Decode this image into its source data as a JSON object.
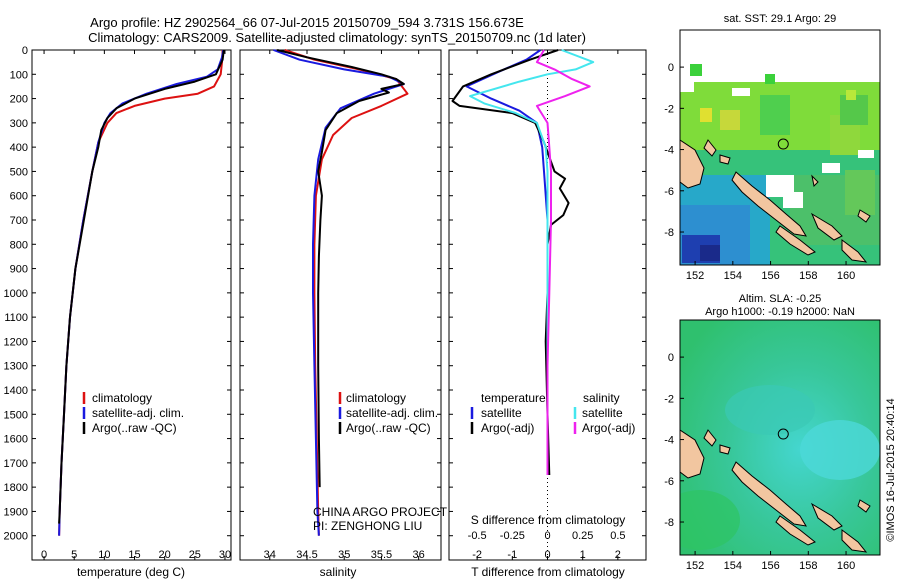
{
  "title_line1": "Argo profile: HZ 2902564_66 07-Jul-2015 20150709_594 3.731S 156.673E",
  "title_line2": "Climatology: CARS2009. Satellite-adjusted climatology: synTS_20150709.nc (1d later)",
  "watermark": "©IMOS 16-Jul-2015 20:40:14",
  "project_line1": "CHINA ARGO PROJECT",
  "project_line2": "PI: ZENGHONG LIU",
  "colors": {
    "climatology": "#dd1111",
    "satellite": "#1a1adf",
    "argo": "#000000",
    "sal_satellite": "#44e6ee",
    "sal_argo": "#ee22ee",
    "land": "#f2c6a0"
  },
  "chart_data": [
    {
      "type": "line",
      "id": "temperature",
      "xlabel": "temperature (deg C)",
      "ylabel": "",
      "xlim": [
        -2,
        31
      ],
      "ylim": [
        2100,
        0
      ],
      "xticks": [
        "0",
        "5",
        "10",
        "15",
        "20",
        "25",
        "30"
      ],
      "yticks": [
        "0",
        "100",
        "200",
        "300",
        "400",
        "500",
        "600",
        "700",
        "800",
        "900",
        "1000",
        "1100",
        "1200",
        "1300",
        "1400",
        "1500",
        "1600",
        "1700",
        "1800",
        "1900",
        "2000"
      ],
      "legend": [
        "climatology",
        "satellite-adj. clim.",
        "Argo(..raw -QC)"
      ],
      "series": [
        {
          "name": "climatology",
          "points": [
            [
              29.6,
              0
            ],
            [
              29.5,
              50
            ],
            [
              29.3,
              100
            ],
            [
              28.2,
              150
            ],
            [
              25.5,
              180
            ],
            [
              20,
              200
            ],
            [
              15,
              230
            ],
            [
              12,
              260
            ],
            [
              10.5,
              300
            ],
            [
              9,
              380
            ],
            [
              8,
              500
            ],
            [
              6.5,
              700
            ],
            [
              5.2,
              900
            ],
            [
              4.3,
              1100
            ],
            [
              3.7,
              1300
            ],
            [
              3.3,
              1500
            ],
            [
              2.9,
              1700
            ],
            [
              2.6,
              1900
            ],
            [
              2.5,
              2000
            ]
          ]
        },
        {
          "name": "satellite-adj. clim.",
          "points": [
            [
              29.7,
              0
            ],
            [
              29.5,
              30
            ],
            [
              28.8,
              80
            ],
            [
              27,
              110
            ],
            [
              22,
              140
            ],
            [
              17,
              180
            ],
            [
              13,
              220
            ],
            [
              11,
              260
            ],
            [
              10,
              300
            ],
            [
              9,
              380
            ],
            [
              8,
              500
            ],
            [
              6.5,
              700
            ],
            [
              5.2,
              900
            ],
            [
              4.3,
              1100
            ],
            [
              3.7,
              1300
            ],
            [
              3.3,
              1500
            ],
            [
              2.9,
              1700
            ],
            [
              2.6,
              1900
            ],
            [
              2.5,
              2000
            ]
          ]
        },
        {
          "name": "Argo(..raw -QC)",
          "points": [
            [
              29.8,
              0
            ],
            [
              29.6,
              40
            ],
            [
              28.5,
              100
            ],
            [
              25,
              130
            ],
            [
              20,
              160
            ],
            [
              15,
              200
            ],
            [
              12,
              240
            ],
            [
              10.5,
              280
            ],
            [
              9.5,
              330
            ],
            [
              9,
              400
            ],
            [
              8,
              500
            ],
            [
              6.6,
              700
            ],
            [
              5.2,
              900
            ],
            [
              4.3,
              1100
            ],
            [
              3.7,
              1300
            ],
            [
              3.3,
              1500
            ],
            [
              2.9,
              1700
            ],
            [
              2.6,
              1900
            ],
            [
              2.5,
              1950
            ]
          ]
        }
      ]
    },
    {
      "type": "line",
      "id": "salinity",
      "xlabel": "salinity",
      "xlim": [
        33.6,
        36.3
      ],
      "ylim": [
        2100,
        0
      ],
      "xticks": [
        "34",
        "34.5",
        "35",
        "35.5",
        "36"
      ],
      "legend": [
        "climatology",
        "satellite-adj. clim.",
        "Argo(..raw -QC)"
      ],
      "series": [
        {
          "name": "climatology",
          "points": [
            [
              34.2,
              0
            ],
            [
              34.6,
              40
            ],
            [
              35.2,
              80
            ],
            [
              35.7,
              120
            ],
            [
              35.85,
              180
            ],
            [
              35.5,
              230
            ],
            [
              35.1,
              280
            ],
            [
              34.85,
              350
            ],
            [
              34.7,
              450
            ],
            [
              34.62,
              600
            ],
            [
              34.6,
              800
            ],
            [
              34.6,
              1000
            ],
            [
              34.61,
              1300
            ],
            [
              34.63,
              1600
            ],
            [
              34.65,
              1900
            ],
            [
              34.66,
              2000
            ]
          ]
        },
        {
          "name": "satellite-adj. clim.",
          "points": [
            [
              34.05,
              0
            ],
            [
              34.4,
              40
            ],
            [
              35.0,
              80
            ],
            [
              35.6,
              110
            ],
            [
              35.8,
              140
            ],
            [
              35.4,
              180
            ],
            [
              34.95,
              240
            ],
            [
              34.75,
              320
            ],
            [
              34.65,
              450
            ],
            [
              34.6,
              600
            ],
            [
              34.58,
              800
            ],
            [
              34.58,
              1000
            ],
            [
              34.6,
              1300
            ],
            [
              34.62,
              1600
            ],
            [
              34.64,
              1900
            ],
            [
              34.66,
              2000
            ]
          ]
        },
        {
          "name": "Argo(..raw -QC)",
          "points": [
            [
              34.1,
              0
            ],
            [
              34.5,
              30
            ],
            [
              35.1,
              70
            ],
            [
              35.5,
              100
            ],
            [
              35.7,
              120
            ],
            [
              35.8,
              140
            ],
            [
              35.5,
              160
            ],
            [
              35.6,
              175
            ],
            [
              35.2,
              210
            ],
            [
              34.9,
              260
            ],
            [
              34.75,
              330
            ],
            [
              34.7,
              420
            ],
            [
              34.65,
              500
            ],
            [
              34.7,
              600
            ],
            [
              34.68,
              700
            ],
            [
              34.66,
              850
            ],
            [
              34.65,
              1000
            ],
            [
              34.65,
              1300
            ],
            [
              34.66,
              1600
            ],
            [
              34.67,
              1800
            ]
          ]
        }
      ]
    },
    {
      "type": "line",
      "id": "difference",
      "xlabel": "T difference from climatology",
      "xlabel_top": "S difference from climatology",
      "xlim": [
        -2.8,
        2.8
      ],
      "ylim": [
        2100,
        0
      ],
      "xticks": [
        "-2",
        "-1",
        "0",
        "1",
        "2"
      ],
      "xticks_top": [
        "-0.5",
        "-0.25",
        "0",
        "0.25",
        "0.5"
      ],
      "legend_left_title": "temperature",
      "legend_right_title": "salinity",
      "legend": [
        "satellite",
        "Argo(-adj)",
        "satellite",
        "Argo(-adj)"
      ],
      "series": [
        {
          "name": "satellite",
          "points": [
            [
              -0.2,
              0
            ],
            [
              -0.6,
              40
            ],
            [
              -1.4,
              90
            ],
            [
              -2.3,
              150
            ],
            [
              -1.6,
              200
            ],
            [
              -0.8,
              250
            ],
            [
              -0.3,
              300
            ],
            [
              -0.15,
              400
            ],
            [
              -0.1,
              500
            ],
            [
              0,
              700
            ],
            [
              0,
              1000
            ],
            [
              0,
              1300
            ],
            [
              0,
              1600
            ],
            [
              0.02,
              1750
            ]
          ]
        },
        {
          "name": "Argo(-adj)",
          "points": [
            [
              0.3,
              0
            ],
            [
              -0.5,
              40
            ],
            [
              -1.6,
              100
            ],
            [
              -2.4,
              150
            ],
            [
              -2.7,
              210
            ],
            [
              -2.5,
              230
            ],
            [
              -1,
              260
            ],
            [
              -0.35,
              300
            ],
            [
              -0.1,
              380
            ],
            [
              0,
              420
            ],
            [
              0.2,
              500
            ],
            [
              0.5,
              530
            ],
            [
              0.35,
              570
            ],
            [
              0.6,
              630
            ],
            [
              0.45,
              680
            ],
            [
              0.1,
              720
            ],
            [
              0,
              800
            ],
            [
              0,
              1000
            ],
            [
              -0.05,
              1200
            ],
            [
              0,
              1500
            ],
            [
              0.05,
              1750
            ]
          ]
        },
        {
          "name": "satellite",
          "points": [
            [
              0.4,
              0
            ],
            [
              1.3,
              50
            ],
            [
              0.8,
              80
            ],
            [
              0,
              100
            ],
            [
              -0.8,
              130
            ],
            [
              -2.2,
              190
            ],
            [
              -1.8,
              220
            ],
            [
              -0.9,
              260
            ],
            [
              -0.3,
              300
            ],
            [
              -0.05,
              400
            ],
            [
              0,
              500
            ],
            [
              0,
              700
            ],
            [
              0,
              1000
            ],
            [
              0,
              1300
            ],
            [
              0,
              1600
            ],
            [
              0,
              1750
            ]
          ]
        },
        {
          "name": "Argo(-adj)",
          "points": [
            [
              -0.1,
              0
            ],
            [
              -0.3,
              50
            ],
            [
              0.2,
              80
            ],
            [
              0.7,
              120
            ],
            [
              1.2,
              150
            ],
            [
              0.5,
              190
            ],
            [
              -0.3,
              230
            ],
            [
              0,
              300
            ],
            [
              0.05,
              400
            ],
            [
              0.1,
              500
            ],
            [
              0.1,
              700
            ],
            [
              0.05,
              1000
            ],
            [
              0,
              1300
            ],
            [
              0,
              1600
            ],
            [
              0,
              1750
            ]
          ]
        }
      ]
    },
    {
      "type": "heatmap",
      "id": "sst-map",
      "title": "sat. SST: 29.1  Argo: 29",
      "xlim": [
        151.2,
        161.8
      ],
      "ylim": [
        -9.6,
        1.8
      ],
      "xticks": [
        "152",
        "154",
        "156",
        "158",
        "160"
      ],
      "yticks": [
        "0",
        "-2",
        "-4",
        "-6",
        "-8"
      ],
      "profile_location": [
        156.673,
        -3.731
      ]
    },
    {
      "type": "heatmap",
      "id": "sla-map",
      "title_line1": "Altim. SLA: -0.25",
      "title_line2": "Argo h1000: -0.19 h2000: NaN",
      "xlim": [
        151.2,
        161.8
      ],
      "ylim": [
        -9.6,
        1.8
      ],
      "xticks": [
        "152",
        "154",
        "156",
        "158",
        "160"
      ],
      "yticks": [
        "0",
        "-2",
        "-4",
        "-6",
        "-8"
      ],
      "profile_location": [
        156.673,
        -3.731
      ]
    }
  ]
}
